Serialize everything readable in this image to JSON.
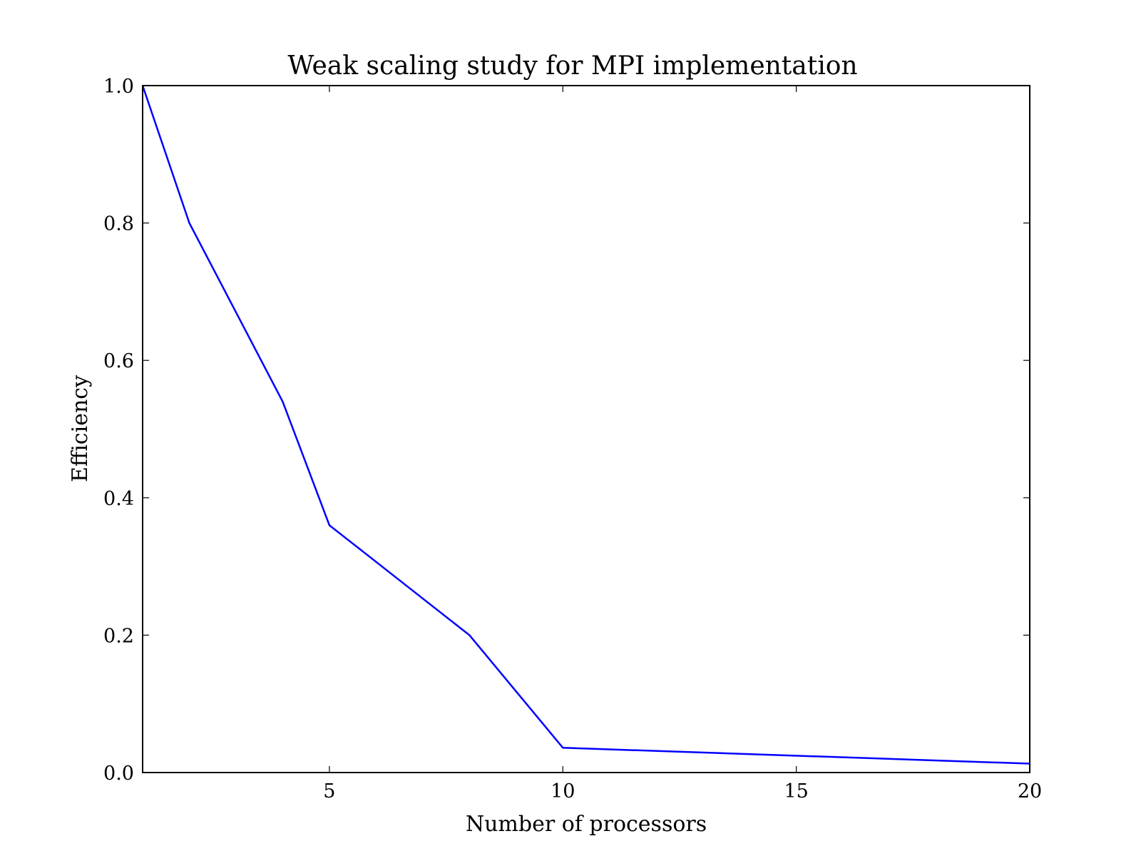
{
  "chart_data": {
    "type": "line",
    "title": "Weak scaling study for MPI implementation",
    "xlabel": "Number of processors",
    "ylabel": "Efficiency",
    "xlim": [
      1,
      20
    ],
    "ylim": [
      0.0,
      1.0
    ],
    "x_ticks": [
      "5",
      "10",
      "15",
      "20"
    ],
    "y_ticks": [
      "0.0",
      "0.2",
      "0.4",
      "0.6",
      "0.8",
      "1.0"
    ],
    "grid": false,
    "legend": "none",
    "series": [
      {
        "color": "#0000ff",
        "x": [
          1,
          2,
          4,
          5,
          8,
          10,
          20
        ],
        "y": [
          1.0,
          0.8,
          0.54,
          0.36,
          0.2,
          0.036,
          0.013
        ]
      }
    ]
  }
}
